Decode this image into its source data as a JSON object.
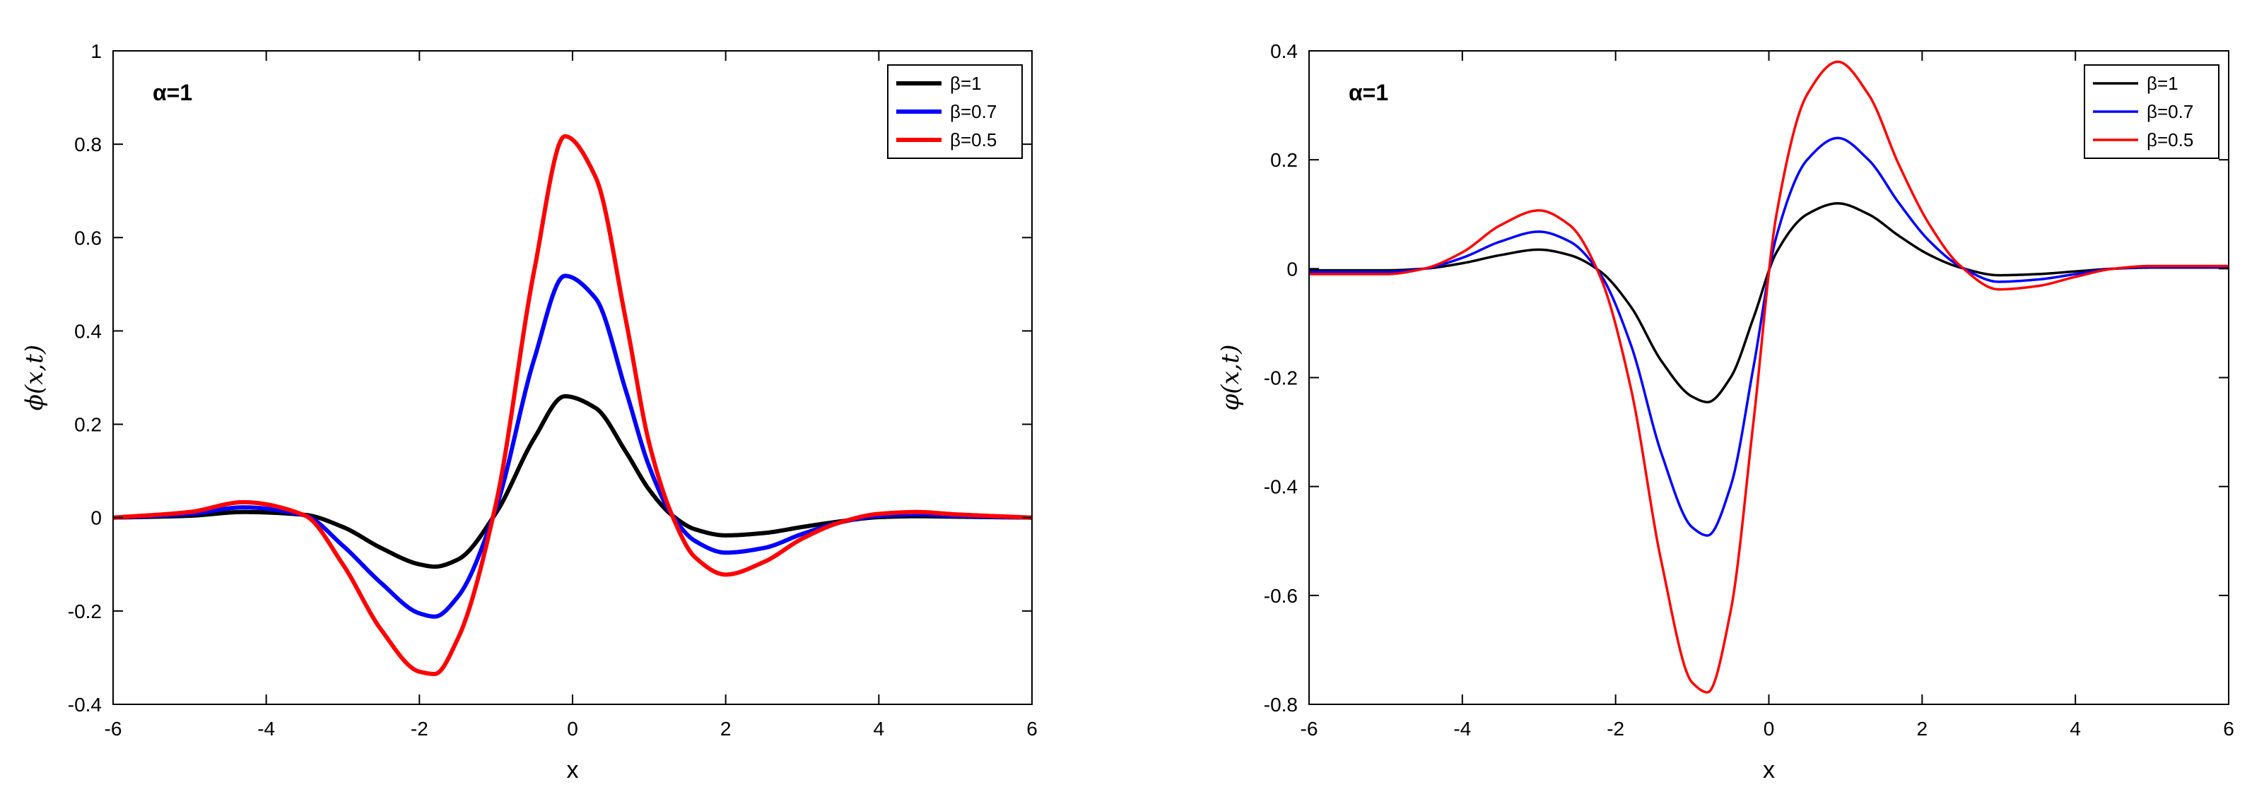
{
  "chart_data": [
    {
      "type": "line",
      "xlabel": "x",
      "ylabel": "ϕ(x,t)",
      "annotation": "α=1",
      "xlim": [
        -6,
        6
      ],
      "ylim": [
        -0.4,
        1
      ],
      "xticks": [
        "-6",
        "-4",
        "-2",
        "0",
        "2",
        "4",
        "6"
      ],
      "yticks": [
        "-0.4",
        "-0.2",
        "0",
        "0.2",
        "0.4",
        "0.6",
        "0.8",
        "1"
      ],
      "legend_position": "top-right",
      "series": [
        {
          "name": "β=1",
          "color": "#000000",
          "x": [
            -6,
            -5,
            -4.3,
            -3.5,
            -3,
            -2.5,
            -2,
            -1.8,
            -1.5,
            -1,
            -0.5,
            -0.1,
            0.3,
            0.7,
            1,
            1.3,
            1.6,
            2,
            2.5,
            3,
            3.5,
            4,
            4.5,
            5,
            6
          ],
          "values": [
            0,
            0.004,
            0.012,
            0.006,
            -0.02,
            -0.065,
            -0.1,
            -0.105,
            -0.09,
            0.01,
            0.17,
            0.26,
            0.235,
            0.14,
            0.06,
            0.005,
            -0.025,
            -0.038,
            -0.033,
            -0.02,
            -0.008,
            0.001,
            0.003,
            0.002,
            0
          ]
        },
        {
          "name": "β=0.7",
          "color": "#0000ff",
          "x": [
            -6,
            -5,
            -4.3,
            -3.5,
            -3,
            -2.5,
            -2,
            -1.8,
            -1.5,
            -1,
            -0.5,
            -0.1,
            0.3,
            0.7,
            1,
            1.3,
            1.6,
            2,
            2.5,
            3,
            3.5,
            4,
            4.5,
            5,
            6
          ],
          "values": [
            0,
            0.008,
            0.022,
            0.005,
            -0.06,
            -0.14,
            -0.205,
            -0.212,
            -0.17,
            0.02,
            0.34,
            0.518,
            0.47,
            0.27,
            0.11,
            0.005,
            -0.05,
            -0.075,
            -0.065,
            -0.035,
            -0.01,
            0.004,
            0.007,
            0.004,
            0
          ]
        },
        {
          "name": "β=0.5",
          "color": "#ff0000",
          "x": [
            -6,
            -5,
            -4.3,
            -3.5,
            -3,
            -2.5,
            -2,
            -1.8,
            -1.5,
            -1,
            -0.5,
            -0.1,
            0.3,
            0.7,
            1,
            1.3,
            1.6,
            2,
            2.5,
            3,
            3.5,
            4,
            4.5,
            5,
            6
          ],
          "values": [
            0,
            0.012,
            0.033,
            0.005,
            -0.1,
            -0.24,
            -0.33,
            -0.335,
            -0.26,
            0.03,
            0.53,
            0.817,
            0.73,
            0.42,
            0.16,
            0.005,
            -0.085,
            -0.122,
            -0.095,
            -0.045,
            -0.01,
            0.008,
            0.012,
            0.007,
            0
          ]
        }
      ]
    },
    {
      "type": "line",
      "xlabel": "x",
      "ylabel": "φ(x,t)",
      "annotation": "α=1",
      "xlim": [
        -6,
        6
      ],
      "ylim": [
        -0.8,
        0.4
      ],
      "xticks": [
        "-6",
        "-4",
        "-2",
        "0",
        "2",
        "4",
        "6"
      ],
      "yticks": [
        "-0.8",
        "-0.6",
        "-0.4",
        "-0.2",
        "0",
        "0.2",
        "0.4"
      ],
      "legend_position": "top-right",
      "series": [
        {
          "name": "β=1",
          "color": "#000000",
          "x": [
            -6,
            -5,
            -4.5,
            -4,
            -3.5,
            -3,
            -2.6,
            -2.2,
            -1.8,
            -1.4,
            -1,
            -0.8,
            -0.5,
            -0.2,
            0.1,
            0.5,
            0.9,
            1.3,
            1.7,
            2.1,
            2.5,
            3,
            3.5,
            4,
            4.5,
            5,
            6
          ],
          "values": [
            -0.003,
            -0.003,
            0,
            0.01,
            0.025,
            0.035,
            0.025,
            -0.005,
            -0.07,
            -0.17,
            -0.235,
            -0.245,
            -0.2,
            -0.09,
            0.03,
            0.1,
            0.12,
            0.1,
            0.06,
            0.025,
            0.002,
            -0.012,
            -0.01,
            -0.005,
            0,
            0.002,
            0.002
          ]
        },
        {
          "name": "β=0.7",
          "color": "#0000ff",
          "x": [
            -6,
            -5,
            -4.5,
            -4,
            -3.5,
            -3,
            -2.6,
            -2.2,
            -1.8,
            -1.4,
            -1,
            -0.8,
            -0.5,
            -0.2,
            0.1,
            0.5,
            0.9,
            1.3,
            1.7,
            2.1,
            2.5,
            3,
            3.5,
            4,
            4.5,
            5,
            6
          ],
          "values": [
            -0.006,
            -0.006,
            0,
            0.02,
            0.05,
            0.068,
            0.05,
            -0.01,
            -0.14,
            -0.34,
            -0.475,
            -0.49,
            -0.4,
            -0.18,
            0.06,
            0.2,
            0.24,
            0.2,
            0.12,
            0.05,
            0.004,
            -0.024,
            -0.02,
            -0.01,
            0,
            0.003,
            0.003
          ]
        },
        {
          "name": "β=0.5",
          "color": "#ff0000",
          "x": [
            -6,
            -5,
            -4.5,
            -4,
            -3.5,
            -3,
            -2.6,
            -2.2,
            -1.8,
            -1.4,
            -1,
            -0.8,
            -0.5,
            -0.2,
            0.1,
            0.5,
            0.9,
            1.3,
            1.7,
            2.1,
            2.5,
            3,
            3.5,
            4,
            4.5,
            5,
            6
          ],
          "values": [
            -0.01,
            -0.01,
            0,
            0.03,
            0.08,
            0.107,
            0.08,
            -0.015,
            -0.22,
            -0.54,
            -0.76,
            -0.778,
            -0.63,
            -0.28,
            0.1,
            0.32,
            0.38,
            0.32,
            0.19,
            0.08,
            0.005,
            -0.038,
            -0.032,
            -0.015,
            0,
            0.005,
            0.005
          ]
        }
      ]
    }
  ]
}
